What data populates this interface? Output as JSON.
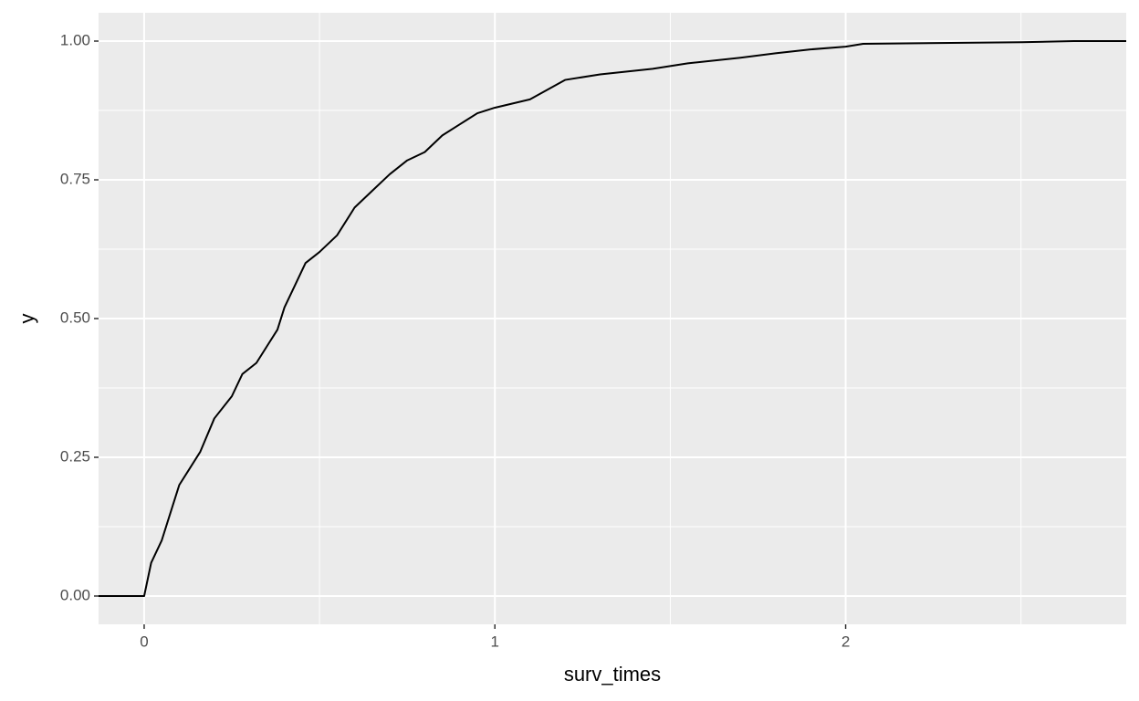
{
  "chart_data": {
    "type": "line",
    "x_label": "surv_times",
    "y_label": "y",
    "x": [
      -0.13,
      0.0,
      0.02,
      0.05,
      0.08,
      0.1,
      0.13,
      0.16,
      0.2,
      0.25,
      0.28,
      0.32,
      0.35,
      0.38,
      0.4,
      0.43,
      0.46,
      0.5,
      0.55,
      0.6,
      0.65,
      0.7,
      0.75,
      0.8,
      0.85,
      0.9,
      0.95,
      1.0,
      1.1,
      1.2,
      1.3,
      1.45,
      1.55,
      1.7,
      1.8,
      1.9,
      2.0,
      2.05,
      2.5,
      2.65,
      2.8
    ],
    "y": [
      0,
      0,
      0.06,
      0.1,
      0.16,
      0.2,
      0.23,
      0.26,
      0.32,
      0.36,
      0.4,
      0.42,
      0.45,
      0.48,
      0.52,
      0.56,
      0.6,
      0.62,
      0.65,
      0.7,
      0.73,
      0.76,
      0.785,
      0.8,
      0.83,
      0.85,
      0.87,
      0.88,
      0.895,
      0.93,
      0.94,
      0.95,
      0.96,
      0.97,
      0.978,
      0.985,
      0.99,
      0.995,
      0.998,
      1.0,
      1.0
    ],
    "color": "#000000",
    "xlim": [
      -0.13,
      2.8
    ],
    "ylim": [
      -0.051,
      1.051
    ],
    "xticks": [
      0,
      1,
      2
    ],
    "yticks": [
      {
        "value": 0,
        "label": "0.00"
      },
      {
        "value": 0.25,
        "label": "0.25"
      },
      {
        "value": 0.5,
        "label": "0.50"
      },
      {
        "value": 0.75,
        "label": "0.75"
      },
      {
        "value": 1,
        "label": "1.00"
      }
    ],
    "minor_xticks": [
      0.5,
      1.5,
      2.5
    ],
    "minor_yticks": [
      0.125,
      0.375,
      0.625,
      0.875
    ],
    "grid": true
  }
}
